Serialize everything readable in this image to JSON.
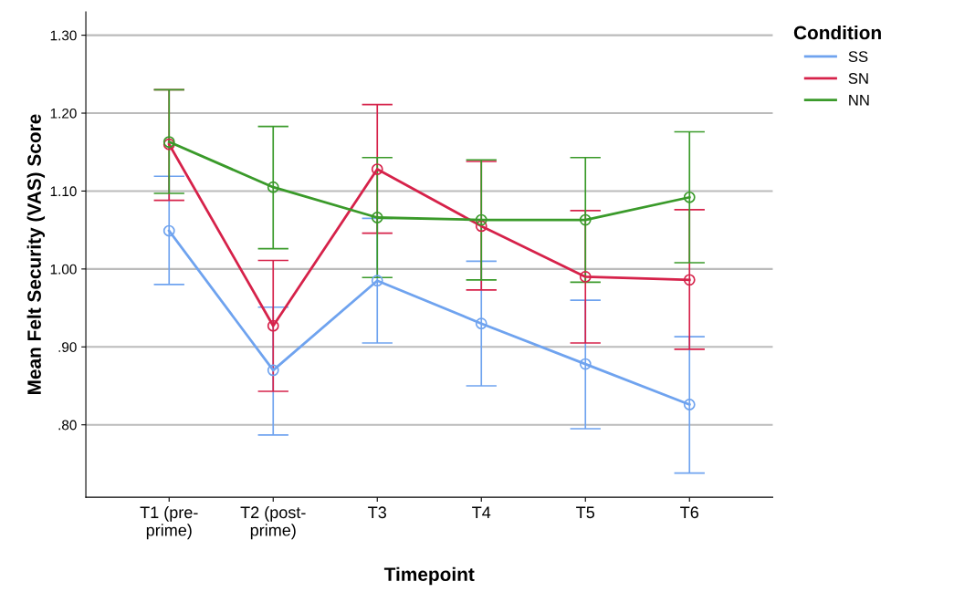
{
  "chart_data": {
    "type": "line",
    "xlabel": "Timepoint",
    "ylabel": "Mean Felt Security (VAS) Score",
    "legend_title": "Condition",
    "categories": [
      "T1 (pre-prime)",
      "T2 (post-prime)",
      "T3",
      "T4",
      "T5",
      "T6"
    ],
    "series": [
      {
        "name": "SS",
        "color": "#6fa3ef",
        "values": [
          1.049,
          0.87,
          0.985,
          0.93,
          0.878,
          0.826
        ],
        "errors": [
          [
            0.98,
            1.119
          ],
          [
            0.787,
            0.951
          ],
          [
            0.905,
            1.065
          ],
          [
            0.85,
            1.01
          ],
          [
            0.795,
            0.96
          ],
          [
            0.738,
            0.913
          ]
        ]
      },
      {
        "name": "SN",
        "color": "#d6224a",
        "values": [
          1.16,
          0.927,
          1.128,
          1.055,
          0.99,
          0.986
        ],
        "errors": [
          [
            1.088,
            1.23
          ],
          [
            0.843,
            1.011
          ],
          [
            1.046,
            1.211
          ],
          [
            0.973,
            1.138
          ],
          [
            0.905,
            1.075
          ],
          [
            0.897,
            1.076
          ]
        ]
      },
      {
        "name": "NN",
        "color": "#3a9a2a",
        "values": [
          1.163,
          1.105,
          1.066,
          1.063,
          1.063,
          1.092
        ],
        "errors": [
          [
            1.097,
            1.23
          ],
          [
            1.026,
            1.183
          ],
          [
            0.989,
            1.143
          ],
          [
            0.986,
            1.14
          ],
          [
            0.983,
            1.143
          ],
          [
            1.008,
            1.176
          ]
        ]
      }
    ],
    "ylim": [
      0.707,
      1.33
    ],
    "yticks": [
      {
        "value": 0.8,
        "label": ".80"
      },
      {
        "value": 0.9,
        "label": ".90"
      },
      {
        "value": 1.0,
        "label": "1.00"
      },
      {
        "value": 1.1,
        "label": "1.10"
      },
      {
        "value": 1.2,
        "label": "1.20"
      },
      {
        "value": 1.3,
        "label": "1.30"
      }
    ],
    "grid": "y",
    "legend": "top right",
    "marker": "circle",
    "line_style": "solid"
  }
}
